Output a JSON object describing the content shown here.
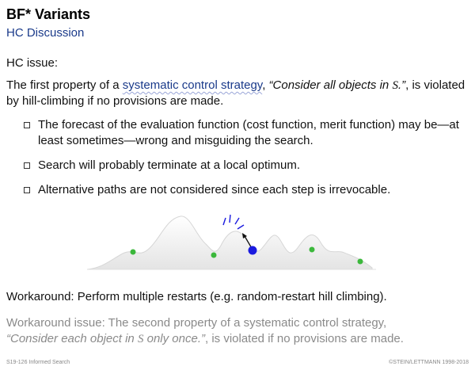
{
  "slide": {
    "title": "BF* Variants",
    "subtitle": "HC Discussion"
  },
  "issue": {
    "label": "HC issue:",
    "text_before": "The first property of a ",
    "link": "systematic control strategy",
    "text_comma": ", ",
    "quote_pre": "“Consider all objects in ",
    "quote_var": "S",
    "quote_post": ".”",
    "text_after": ", is violated by hill-climbing if no provisions are made."
  },
  "bullets": [
    "The forecast of the evaluation function (cost function, merit function) may be—at least sometimes—wrong and misguiding the search.",
    "Search will probably terminate at a local optimum.",
    "Alternative paths are not considered since each step is irrevocable."
  ],
  "workaround": "Workaround: Perform multiple restarts (e.g. random-restart hill climbing).",
  "workaround_issue": {
    "text_before": "Workaround issue: The second property of a systematic control strategy,",
    "quote_pre": "“Consider each object in ",
    "quote_var": "S",
    "quote_post": " only once.”",
    "text_after": ", is violated if no provisions are made."
  },
  "footer": {
    "left": "S19-126   Informed Search",
    "right": "©STEIN/LETTMANN 1998-2018"
  },
  "colors": {
    "accent": "#1a3a8a",
    "point_green": "#3cb83c",
    "point_blue": "#1a1adf"
  }
}
